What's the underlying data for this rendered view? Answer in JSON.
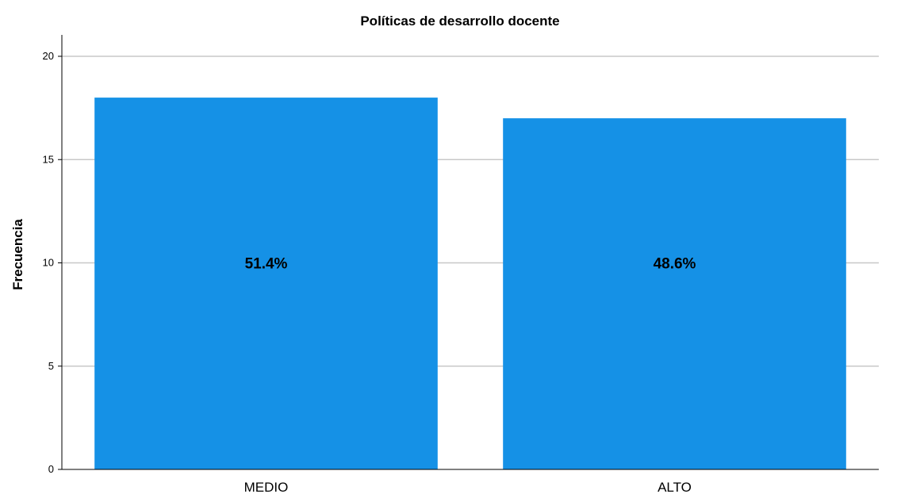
{
  "chart_data": {
    "type": "bar",
    "title": "Políticas de desarrollo docente",
    "xlabel": "",
    "ylabel": "Frecuencia",
    "categories": [
      "MEDIO",
      "ALTO"
    ],
    "values": [
      18,
      17
    ],
    "data_labels": [
      "51.4%",
      "48.6%"
    ],
    "ylim": [
      0,
      20
    ],
    "yticks": [
      0,
      5,
      10,
      15,
      20
    ],
    "grid": true,
    "colors": {
      "bar": "#1591e6",
      "grid": "#c8c8c8",
      "axis": "#000000"
    }
  }
}
